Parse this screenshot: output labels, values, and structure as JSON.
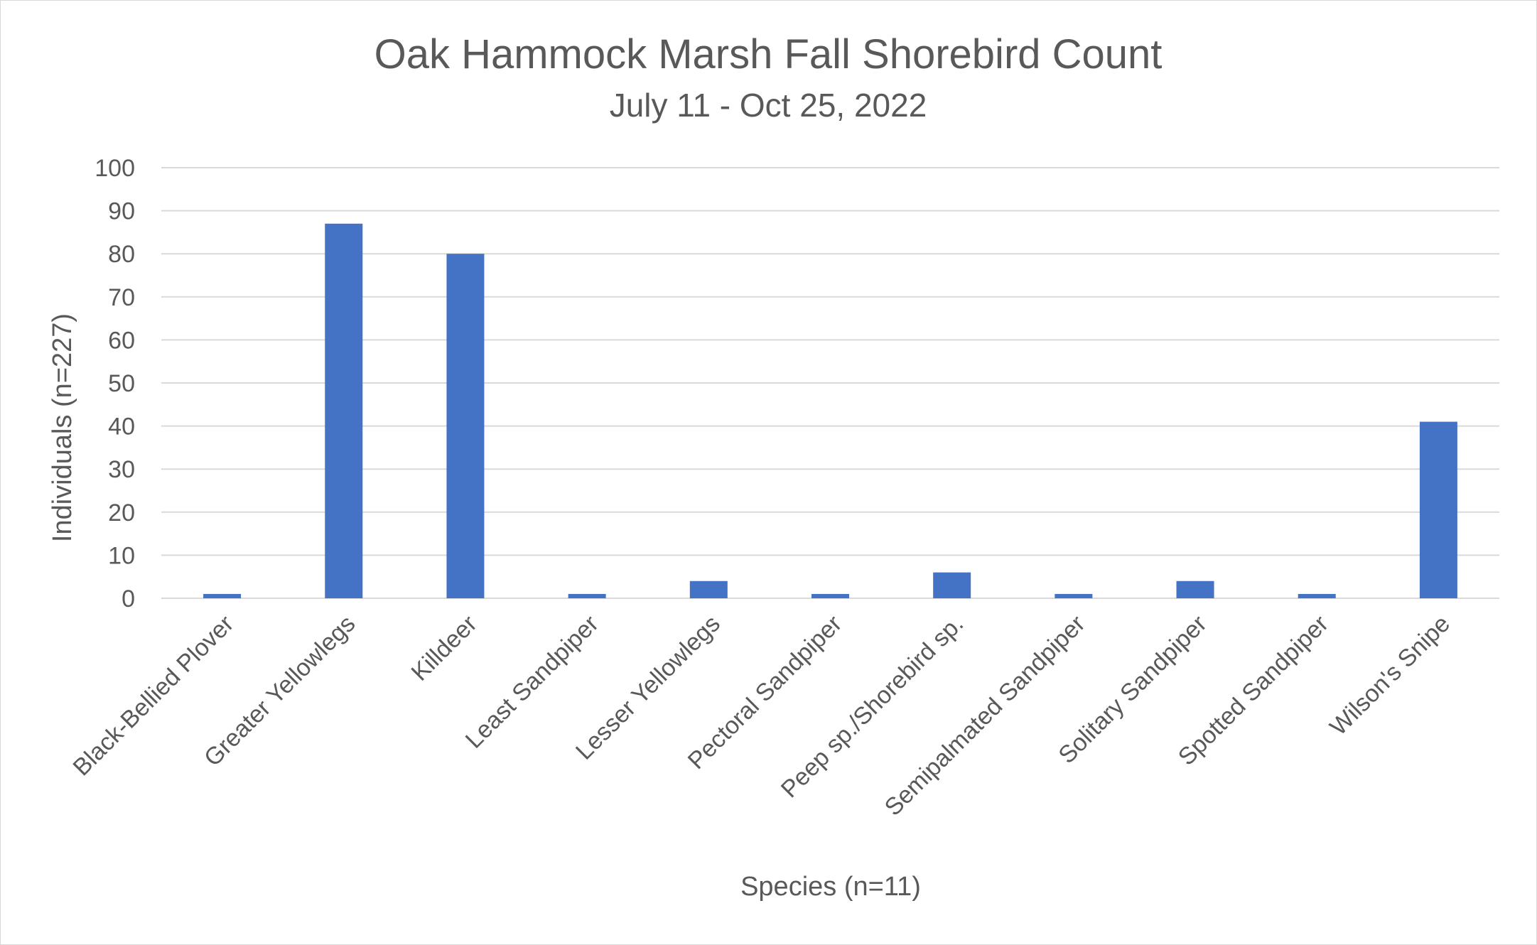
{
  "chart_data": {
    "type": "bar",
    "title": "Oak Hammock Marsh Fall Shorebird Count",
    "subtitle": "July 11 - Oct 25, 2022",
    "xlabel": "Species (n=11)",
    "ylabel": "Individuals (n=227)",
    "ylim": [
      0,
      100
    ],
    "yticks": [
      "0",
      "10",
      "20",
      "30",
      "40",
      "50",
      "60",
      "70",
      "80",
      "90",
      "100"
    ],
    "categories": [
      "Black-Bellied Plover",
      "Greater Yellowlegs",
      "Killdeer",
      "Least Sandpiper",
      "Lesser Yellowlegs",
      "Pectoral Sandpiper",
      "Peep sp./Shorebird sp.",
      "Semipalmated Sandpiper",
      "Solitary Sandpiper",
      "Spotted Sandpiper",
      "Wilson's Snipe"
    ],
    "values": [
      1,
      87,
      80,
      1,
      4,
      1,
      6,
      1,
      4,
      1,
      41
    ],
    "grid": true,
    "legend": "none",
    "bar_color": "#4472c4"
  }
}
